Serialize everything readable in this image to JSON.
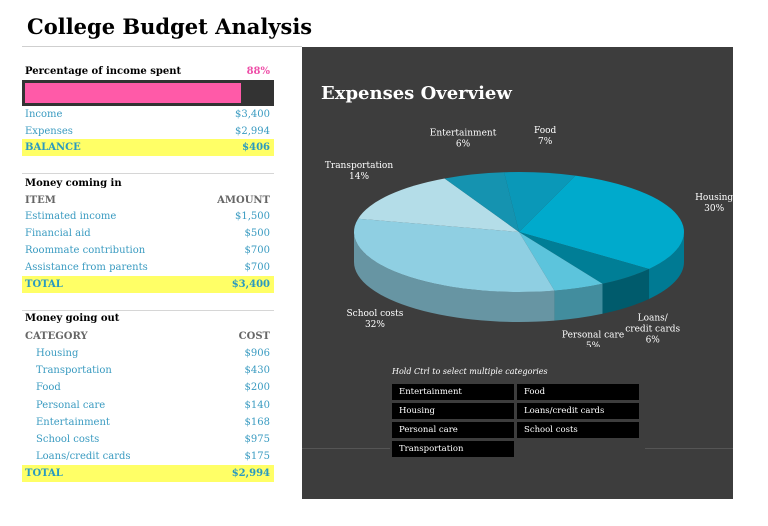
{
  "title": "College Budget Analysis",
  "summary": {
    "pct_label": "Percentage of income spent",
    "pct_value": "88%",
    "pct_fraction": 0.88,
    "rows": [
      {
        "label": "Income",
        "value": "$3,400"
      },
      {
        "label": "Expenses",
        "value": "$2,994"
      }
    ],
    "balance": {
      "label": "BALANCE",
      "value": "$406"
    }
  },
  "money_in": {
    "heading": "Money coming in",
    "col_item": "ITEM",
    "col_amount": "AMOUNT",
    "rows": [
      {
        "label": "Estimated income",
        "value": "$1,500"
      },
      {
        "label": "Financial aid",
        "value": "$500"
      },
      {
        "label": "Roommate contribution",
        "value": "$700"
      },
      {
        "label": "Assistance from parents",
        "value": "$700"
      }
    ],
    "total": {
      "label": "TOTAL",
      "value": "$3,400"
    }
  },
  "money_out": {
    "heading": "Money going out",
    "col_category": "CATEGORY",
    "col_cost": "COST",
    "rows": [
      {
        "label": "Housing",
        "value": "$906"
      },
      {
        "label": "Transportation",
        "value": "$430"
      },
      {
        "label": "Food",
        "value": "$200"
      },
      {
        "label": "Personal care",
        "value": "$140"
      },
      {
        "label": "Entertainment",
        "value": "$168"
      },
      {
        "label": "School costs",
        "value": "$975"
      },
      {
        "label": "Loans/credit cards",
        "value": "$175"
      }
    ],
    "total": {
      "label": "TOTAL",
      "value": "$2,994"
    }
  },
  "chart_data": {
    "type": "pie",
    "title": "Expenses Overview",
    "categories": [
      "Housing",
      "Loans/credit cards",
      "Personal care",
      "School costs",
      "Transportation",
      "Entertainment",
      "Food"
    ],
    "values": [
      30,
      6,
      5,
      32,
      14,
      6,
      7
    ],
    "value_labels": [
      "30%",
      "6%",
      "5%",
      "32%",
      "14%",
      "6%",
      "7%"
    ],
    "colors": [
      "#00aacc",
      "#007e96",
      "#5cc4dc",
      "#8fcfe2",
      "#b4dde8",
      "#1593b0",
      "#0a98b8"
    ]
  },
  "slicer": {
    "hint": "Hold Ctrl to select multiple categories",
    "buttons": [
      "Entertainment",
      "Food",
      "Housing",
      "Loans/credit cards",
      "Personal care",
      "School costs",
      "Transportation"
    ]
  }
}
